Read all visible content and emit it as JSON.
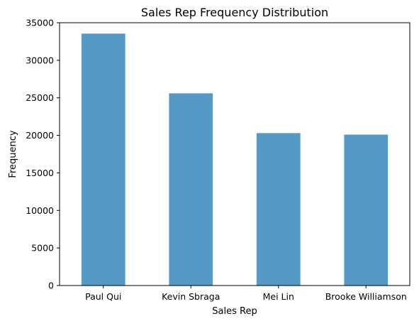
{
  "chart_data": {
    "type": "bar",
    "title": "Sales Rep Frequency Distribution",
    "xlabel": "Sales Rep",
    "ylabel": "Frequency",
    "categories": [
      "Paul Qui",
      "Kevin Sbraga",
      "Mei Lin",
      "Brooke Williamson"
    ],
    "values": [
      33550,
      25600,
      20300,
      20100
    ],
    "ylim": [
      0,
      35000
    ],
    "yticks": [
      0,
      5000,
      10000,
      15000,
      20000,
      25000,
      30000,
      35000
    ],
    "ytick_labels": [
      "0",
      "5000",
      "10000",
      "15000",
      "20000",
      "25000",
      "30000",
      "35000"
    ],
    "grid": false,
    "legend": "none",
    "bar_color": "#5599c7"
  }
}
